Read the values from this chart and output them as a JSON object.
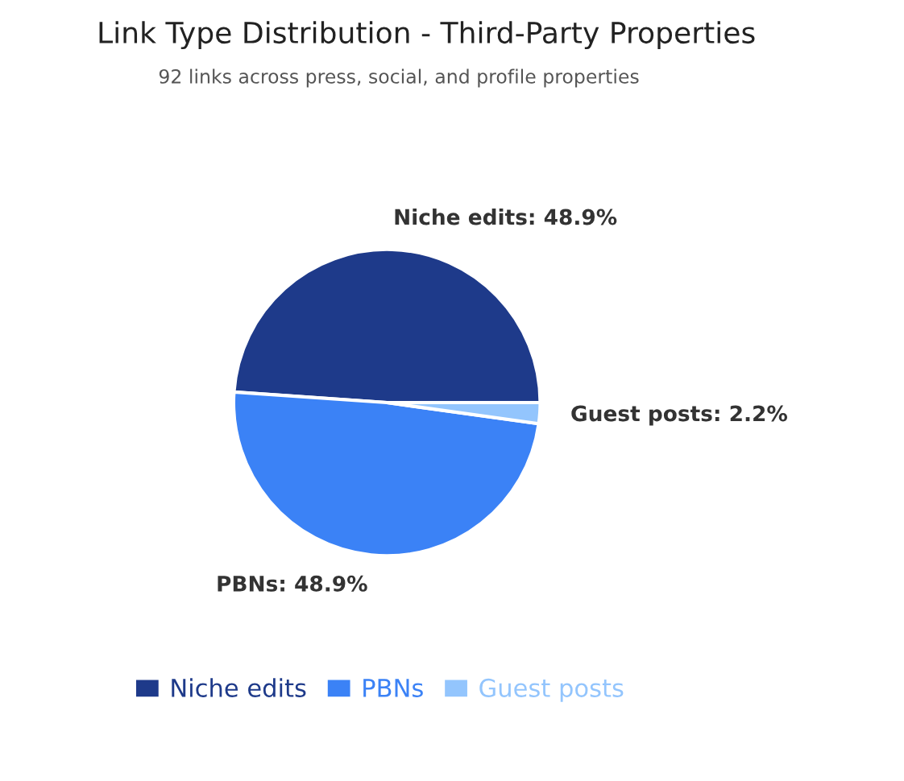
{
  "chart_data": {
    "type": "pie",
    "title": "Link Type Distribution - Third-Party Properties",
    "subtitle": "92 links across press, social, and profile properties",
    "categories": [
      "Niche edits",
      "PBNs",
      "Guest posts"
    ],
    "values": [
      48.9,
      48.9,
      2.2
    ],
    "colors": [
      "#1e3a8a",
      "#3b82f6",
      "#93c5fd"
    ],
    "value_labels": [
      "Niche edits: 48.9%",
      "PBNs: 48.9%",
      "Guest posts: 2.2%"
    ],
    "legend": "bottom"
  }
}
